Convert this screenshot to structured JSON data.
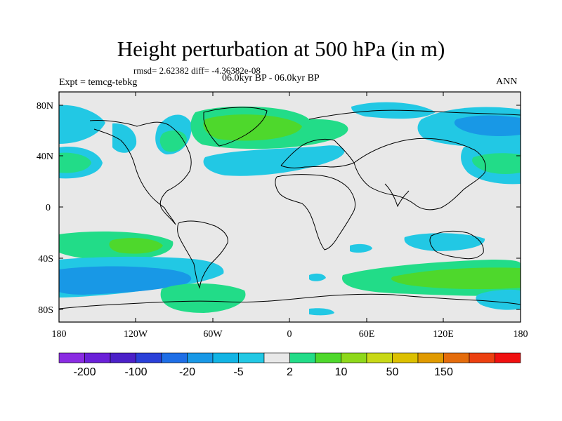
{
  "header": {
    "title": "Height perturbation at 500 hPa (in m)",
    "stats": "rmsd= 2.62382 diff= -4.36382e-08",
    "left_label": "Expt = temcg-tebkg",
    "center_label": "06.0kyr BP - 06.0kyr BP",
    "right_label": "ANN"
  },
  "axes": {
    "y_ticks": [
      "80N",
      "40N",
      "0",
      "40S",
      "80S"
    ],
    "x_ticks": [
      "180",
      "120W",
      "60W",
      "0",
      "60E",
      "120E",
      "180"
    ]
  },
  "colorbar": {
    "colors": [
      "#8a2be2",
      "#6a20d8",
      "#4b20c8",
      "#2a40d8",
      "#1e6ee6",
      "#1898e6",
      "#12b4e4",
      "#22c8e4",
      "#e8e8e8",
      "#22dc88",
      "#4ed82c",
      "#8ed81a",
      "#c8d816",
      "#dcc000",
      "#e09a00",
      "#e46c0c",
      "#ec4010",
      "#f01010"
    ],
    "labels": [
      "-200",
      "-100",
      "-20",
      "-5",
      "2",
      "10",
      "50",
      "150"
    ]
  },
  "colors": {
    "land_background": "#e8e8e8",
    "cyan": "#22c8e4",
    "blue": "#1898e6",
    "dark_blue": "#1e6ee6",
    "teal_green": "#22dc88",
    "green": "#4ed82c"
  }
}
